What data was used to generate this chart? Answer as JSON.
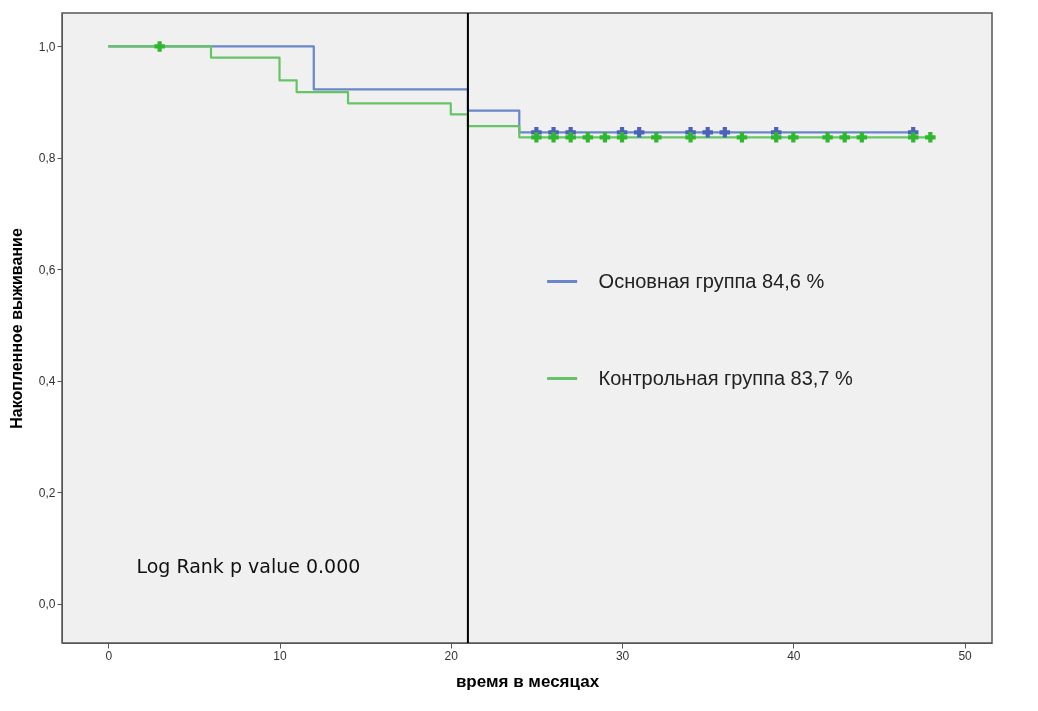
{
  "chart_data": {
    "type": "step",
    "xlabel": "время в месяцах",
    "ylabel": "Накопленное выживание",
    "xlim": [
      -2.7,
      51.6
    ],
    "ylim": [
      -0.07,
      1.06
    ],
    "xticks": [
      0,
      10,
      20,
      30,
      40,
      50
    ],
    "yticks": [
      {
        "value": 0,
        "label": "0,0"
      },
      {
        "value": 0.2,
        "label": "0,2"
      },
      {
        "value": 0.4,
        "label": "0,4"
      },
      {
        "value": 0.6,
        "label": "0,6"
      },
      {
        "value": 0.8,
        "label": "0,8"
      },
      {
        "value": 1,
        "label": "1,0"
      }
    ],
    "series": [
      {
        "name": "Основная группа 84,6 %",
        "marker": "none",
        "color": "#6a86c8",
        "x": [
          0,
          12,
          21,
          24,
          47
        ],
        "values": [
          1,
          0.923,
          0.885,
          0.846,
          0.846
        ]
      },
      {
        "name": "Контрольная группа  83,7 %",
        "marker": "none",
        "color": "#66c466",
        "x": [
          0,
          6,
          10,
          11,
          14,
          20,
          21,
          24,
          48
        ],
        "values": [
          1,
          0.98,
          0.939,
          0.918,
          0.898,
          0.878,
          0.857,
          0.837,
          0.837
        ]
      },
      {
        "type": "scatter",
        "color": "#4a62b8",
        "x": [
          25,
          26,
          27,
          30,
          31,
          34,
          35,
          36,
          39,
          47
        ],
        "values": [
          0.846,
          0.846,
          0.846,
          0.846,
          0.846,
          0.846,
          0.846,
          0.846,
          0.846,
          0.846
        ]
      },
      {
        "type": "scatter",
        "color": "#2fb82f",
        "x": [
          3,
          25,
          26,
          27,
          28,
          29,
          30,
          32,
          34,
          37,
          39,
          40,
          42,
          43,
          44,
          47,
          48
        ],
        "values": [
          1,
          0.837,
          0.837,
          0.837,
          0.837,
          0.837,
          0.837,
          0.837,
          0.837,
          0.837,
          0.837,
          0.837,
          0.837,
          0.837,
          0.837,
          0.837,
          0.837
        ]
      }
    ],
    "marker": "cross",
    "legend": "right",
    "grid": false,
    "ref_lines": [
      {
        "axis": "x",
        "value": 21,
        "color": "#000000"
      }
    ],
    "annotations": [
      "Log Rank p value 0.000"
    ]
  }
}
